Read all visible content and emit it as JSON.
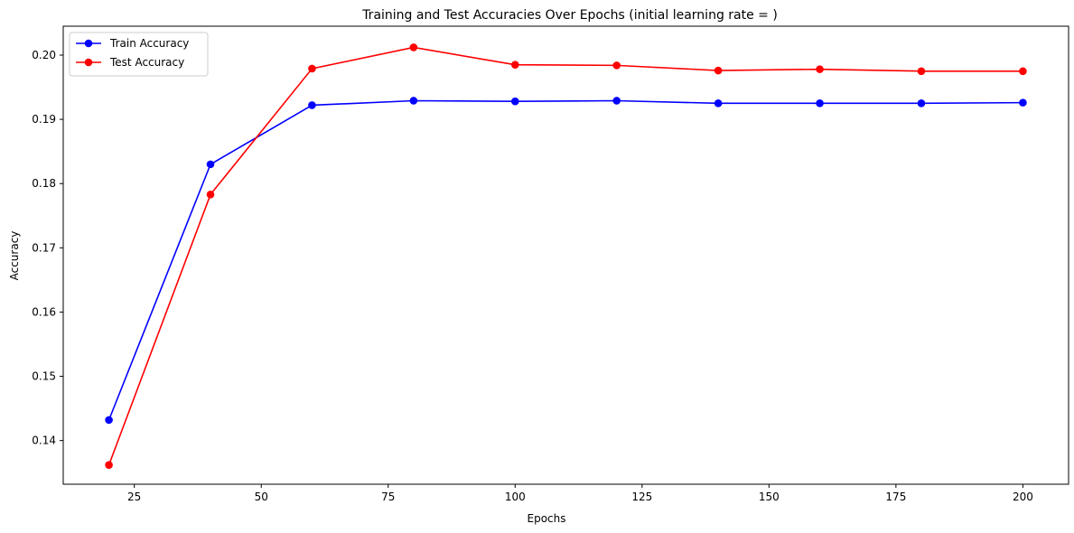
{
  "chart_data": {
    "type": "line",
    "title": "Training and Test Accuracies Over Epochs (initial learning rate = )",
    "xlabel": "Epochs",
    "ylabel": "Accuracy",
    "xlim": [
      11,
      209
    ],
    "ylim": [
      0.1332,
      0.2045
    ],
    "xticks": [
      25,
      50,
      75,
      100,
      125,
      150,
      175,
      200
    ],
    "yticks": [
      0.14,
      0.15,
      0.16,
      0.17,
      0.18,
      0.19,
      0.2
    ],
    "ytick_labels": [
      "0.14",
      "0.15",
      "0.16",
      "0.17",
      "0.18",
      "0.19",
      "0.20"
    ],
    "grid": false,
    "legend_position": "top-left",
    "x": [
      20,
      40,
      60,
      80,
      100,
      120,
      140,
      160,
      180,
      200
    ],
    "series": [
      {
        "name": "Train Accuracy",
        "color": "#0000ff",
        "marker": "circle",
        "values": [
          0.1432,
          0.183,
          0.1922,
          0.1929,
          0.1928,
          0.1929,
          0.1925,
          0.1925,
          0.1925,
          0.1926
        ]
      },
      {
        "name": "Test Accuracy",
        "color": "#ff0000",
        "marker": "circle",
        "values": [
          0.1362,
          0.1783,
          0.1979,
          0.2012,
          0.1985,
          0.1984,
          0.1976,
          0.1978,
          0.1975,
          0.1975
        ]
      }
    ]
  }
}
